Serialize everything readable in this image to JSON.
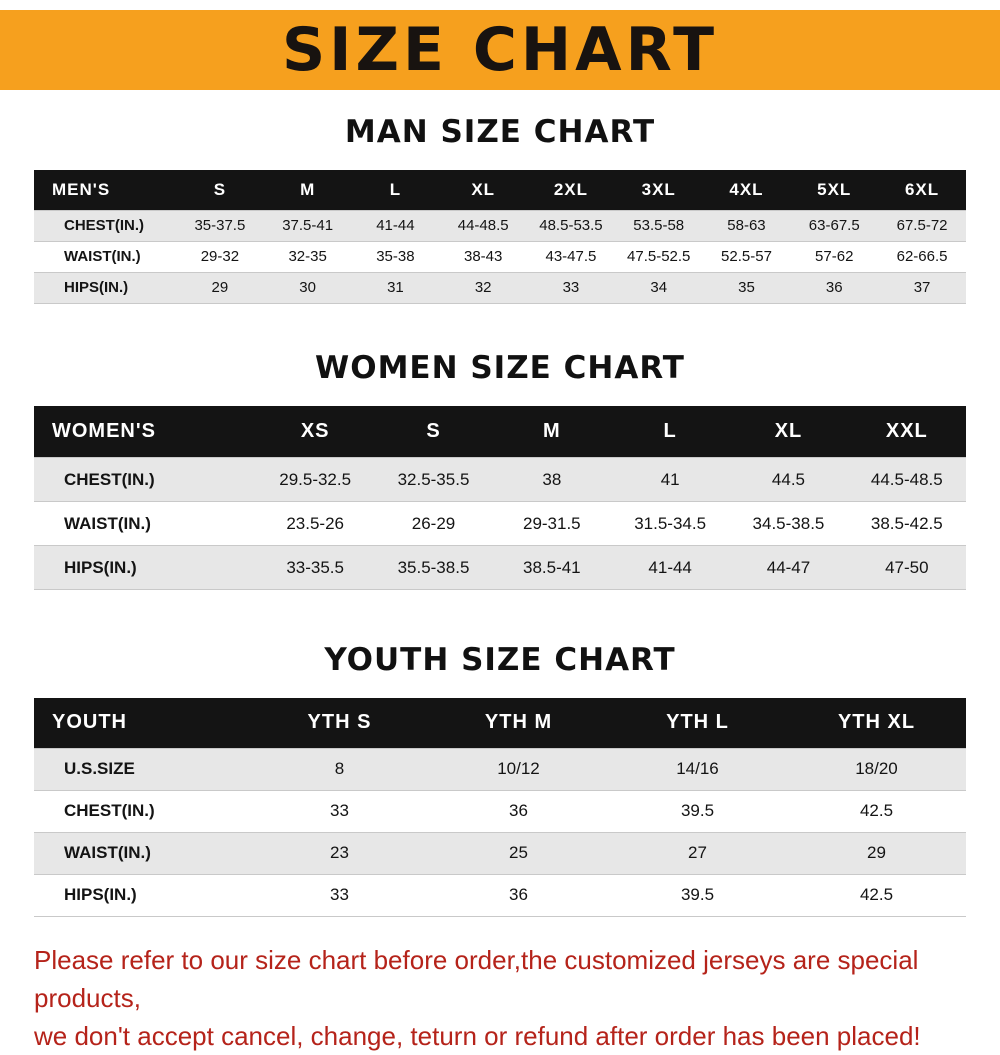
{
  "colors": {
    "banner_bg": "#f6a01e",
    "table_header_bg": "#141414",
    "stripe_bg": "#e7e7e7",
    "footer_text": "#b5231a"
  },
  "banner": {
    "title": "SIZE CHART"
  },
  "sections": [
    {
      "heading": "MAN SIZE CHART",
      "table_name": "mens-size-table",
      "table": {
        "header": [
          "MEN'S",
          "S",
          "M",
          "L",
          "XL",
          "2XL",
          "3XL",
          "4XL",
          "5XL",
          "6XL"
        ],
        "rows": [
          {
            "label": "CHEST(IN.)",
            "values": [
              "35-37.5",
              "37.5-41",
              "41-44",
              "44-48.5",
              "48.5-53.5",
              "53.5-58",
              "58-63",
              "63-67.5",
              "67.5-72"
            ]
          },
          {
            "label": "WAIST(IN.)",
            "values": [
              "29-32",
              "32-35",
              "35-38",
              "38-43",
              "43-47.5",
              "47.5-52.5",
              "52.5-57",
              "57-62",
              "62-66.5"
            ]
          },
          {
            "label": "HIPS(IN.)",
            "values": [
              "29",
              "30",
              "31",
              "32",
              "33",
              "34",
              "35",
              "36",
              "37"
            ]
          }
        ]
      }
    },
    {
      "heading": "WOMEN SIZE CHART",
      "table_name": "womens-size-table",
      "table": {
        "header": [
          "WOMEN'S",
          "XS",
          "S",
          "M",
          "L",
          "XL",
          "XXL"
        ],
        "rows": [
          {
            "label": "CHEST(IN.)",
            "values": [
              "29.5-32.5",
              "32.5-35.5",
              "38",
              "41",
              "44.5",
              "44.5-48.5"
            ]
          },
          {
            "label": "WAIST(IN.)",
            "values": [
              "23.5-26",
              "26-29",
              "29-31.5",
              "31.5-34.5",
              "34.5-38.5",
              "38.5-42.5"
            ]
          },
          {
            "label": "HIPS(IN.)",
            "values": [
              "33-35.5",
              "35.5-38.5",
              "38.5-41",
              "41-44",
              "44-47",
              "47-50"
            ]
          }
        ]
      }
    },
    {
      "heading": "YOUTH SIZE CHART",
      "table_name": "youth-size-table",
      "table": {
        "header": [
          "YOUTH",
          "YTH S",
          "YTH M",
          "YTH L",
          "YTH XL"
        ],
        "rows": [
          {
            "label": "U.S.SIZE",
            "values": [
              "8",
              "10/12",
              "14/16",
              "18/20"
            ]
          },
          {
            "label": "CHEST(IN.)",
            "values": [
              "33",
              "36",
              "39.5",
              "42.5"
            ]
          },
          {
            "label": "WAIST(IN.)",
            "values": [
              "23",
              "25",
              "27",
              "29"
            ]
          },
          {
            "label": "HIPS(IN.)",
            "values": [
              "33",
              "36",
              "39.5",
              "42.5"
            ]
          }
        ]
      }
    }
  ],
  "footer": {
    "lines": [
      "Please refer to our size chart before order,the customized jerseys are special products,",
      "we don't accept cancel, change, teturn or refund after order has been placed!"
    ]
  },
  "chart_data": [
    {
      "type": "table",
      "title": "MAN SIZE CHART",
      "columns": [
        "MEN'S",
        "S",
        "M",
        "L",
        "XL",
        "2XL",
        "3XL",
        "4XL",
        "5XL",
        "6XL"
      ],
      "rows": [
        [
          "CHEST(IN.)",
          "35-37.5",
          "37.5-41",
          "41-44",
          "44-48.5",
          "48.5-53.5",
          "53.5-58",
          "58-63",
          "63-67.5",
          "67.5-72"
        ],
        [
          "WAIST(IN.)",
          "29-32",
          "32-35",
          "35-38",
          "38-43",
          "43-47.5",
          "47.5-52.5",
          "52.5-57",
          "57-62",
          "62-66.5"
        ],
        [
          "HIPS(IN.)",
          "29",
          "30",
          "31",
          "32",
          "33",
          "34",
          "35",
          "36",
          "37"
        ]
      ]
    },
    {
      "type": "table",
      "title": "WOMEN SIZE CHART",
      "columns": [
        "WOMEN'S",
        "XS",
        "S",
        "M",
        "L",
        "XL",
        "XXL"
      ],
      "rows": [
        [
          "CHEST(IN.)",
          "29.5-32.5",
          "32.5-35.5",
          "38",
          "41",
          "44.5",
          "44.5-48.5"
        ],
        [
          "WAIST(IN.)",
          "23.5-26",
          "26-29",
          "29-31.5",
          "31.5-34.5",
          "34.5-38.5",
          "38.5-42.5"
        ],
        [
          "HIPS(IN.)",
          "33-35.5",
          "35.5-38.5",
          "38.5-41",
          "41-44",
          "44-47",
          "47-50"
        ]
      ]
    },
    {
      "type": "table",
      "title": "YOUTH SIZE CHART",
      "columns": [
        "YOUTH",
        "YTH S",
        "YTH M",
        "YTH L",
        "YTH XL"
      ],
      "rows": [
        [
          "U.S.SIZE",
          "8",
          "10/12",
          "14/16",
          "18/20"
        ],
        [
          "CHEST(IN.)",
          "33",
          "36",
          "39.5",
          "42.5"
        ],
        [
          "WAIST(IN.)",
          "23",
          "25",
          "27",
          "29"
        ],
        [
          "HIPS(IN.)",
          "33",
          "36",
          "39.5",
          "42.5"
        ]
      ]
    }
  ]
}
